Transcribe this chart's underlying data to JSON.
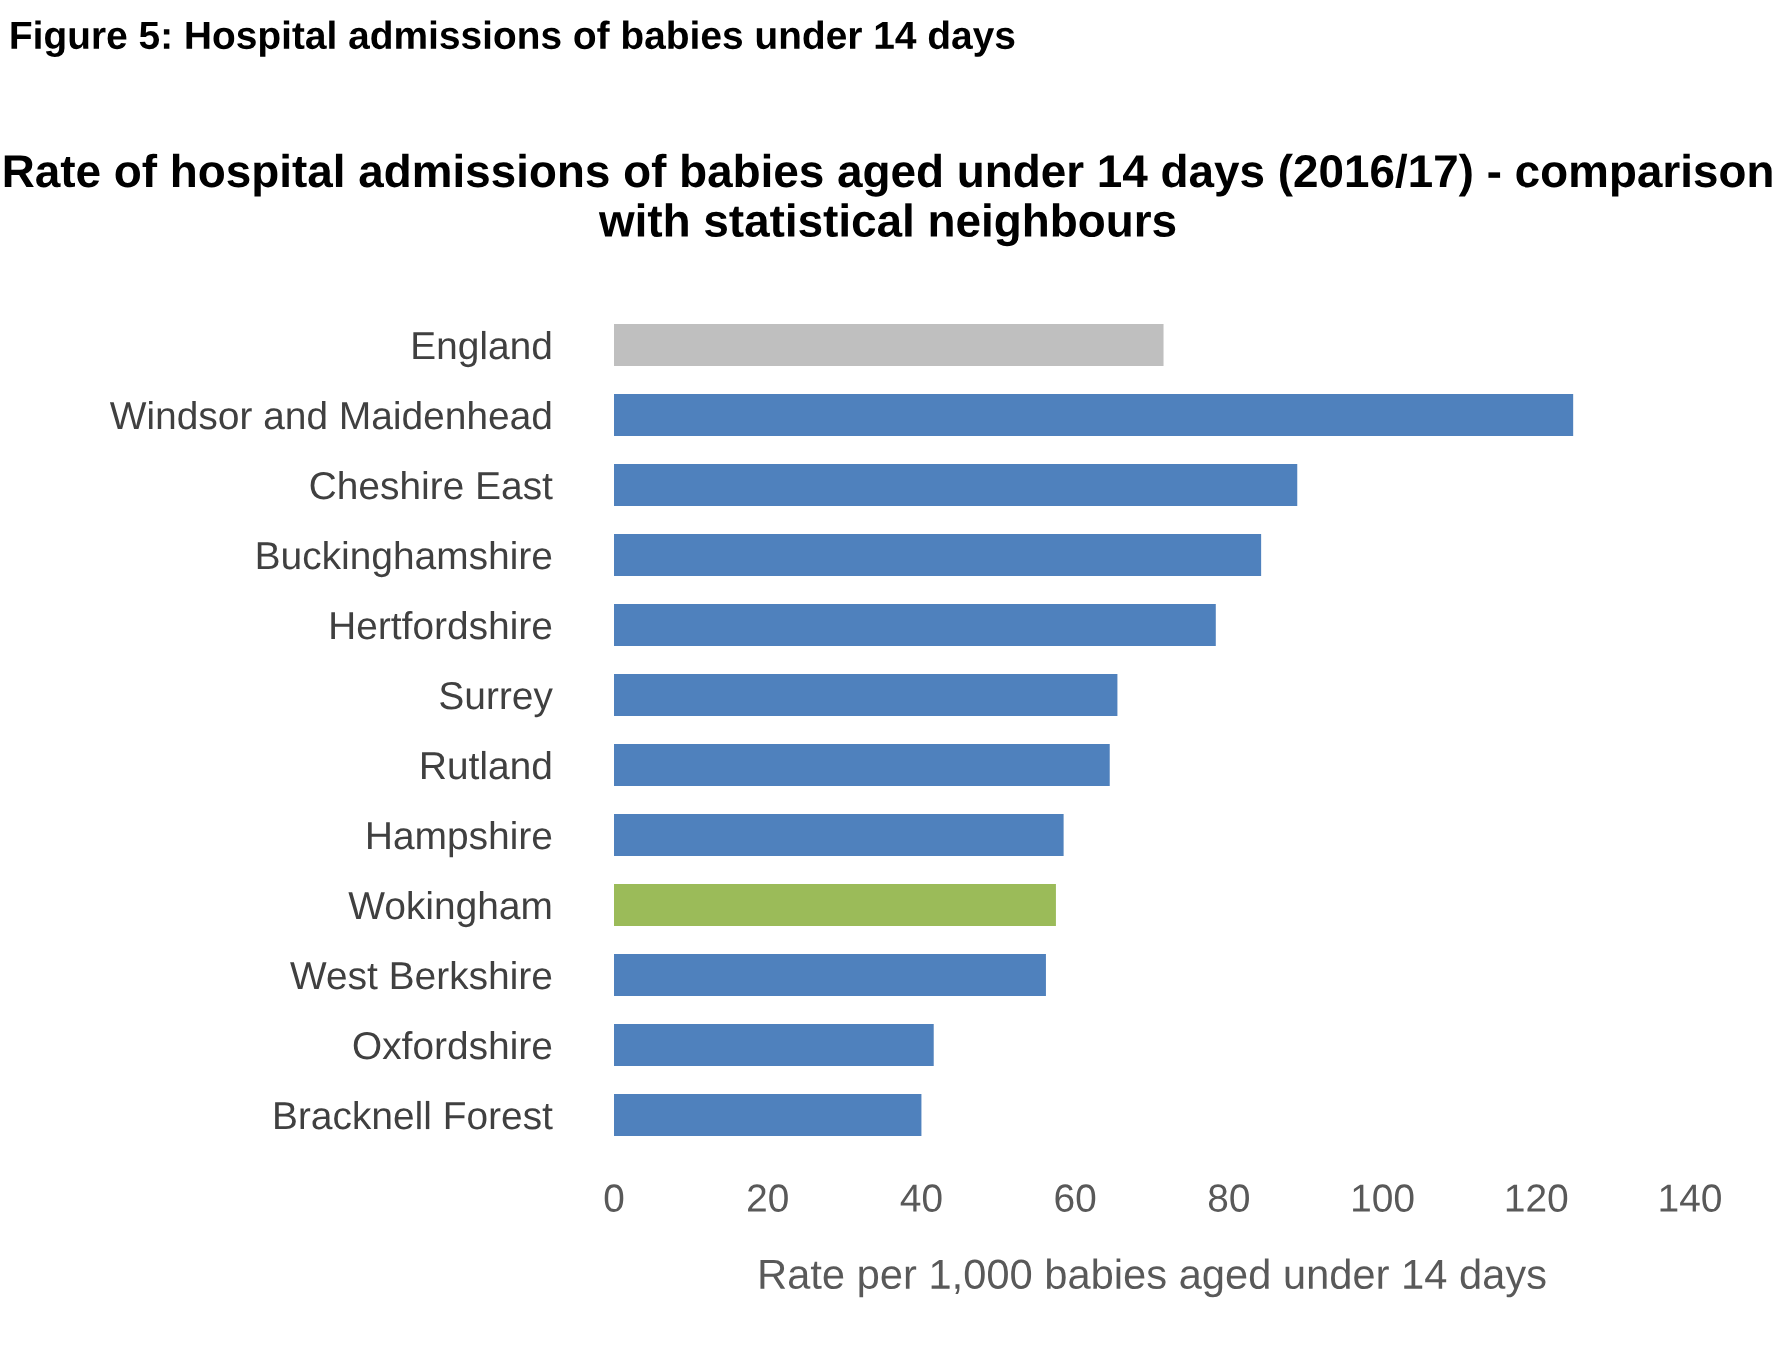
{
  "chart_data": {
    "type": "bar",
    "orientation": "horizontal",
    "title": "Rate of hospital admissions of babies aged under 14 days (2016/17) - comparison with statistical neighbours",
    "xlabel": "Rate per 1,000 babies aged under 14 days",
    "annotations": [
      "Figure 5: Hospital admissions of babies under 14 days"
    ],
    "categories": [
      "England",
      "Windsor and Maidenhead",
      "Cheshire East",
      "Buckinghamshire",
      "Hertfordshire",
      "Surrey",
      "Rutland",
      "Hampshire",
      "Wokingham",
      "West Berkshire",
      "Oxfordshire",
      "Bracknell Forest"
    ],
    "values": [
      71.5,
      124.8,
      88.9,
      84.2,
      78.3,
      65.5,
      64.5,
      58.5,
      57.5,
      56.2,
      41.6,
      40.0
    ],
    "colors": [
      "#bfbfbf",
      "#4f81bd",
      "#4f81bd",
      "#4f81bd",
      "#4f81bd",
      "#4f81bd",
      "#4f81bd",
      "#4f81bd",
      "#9bbb59",
      "#4f81bd",
      "#4f81bd",
      "#4f81bd"
    ],
    "xlim": [
      0,
      140
    ],
    "xticks": [
      0,
      20,
      40,
      60,
      80,
      100,
      120,
      140
    ],
    "grid": false,
    "legend": false
  }
}
